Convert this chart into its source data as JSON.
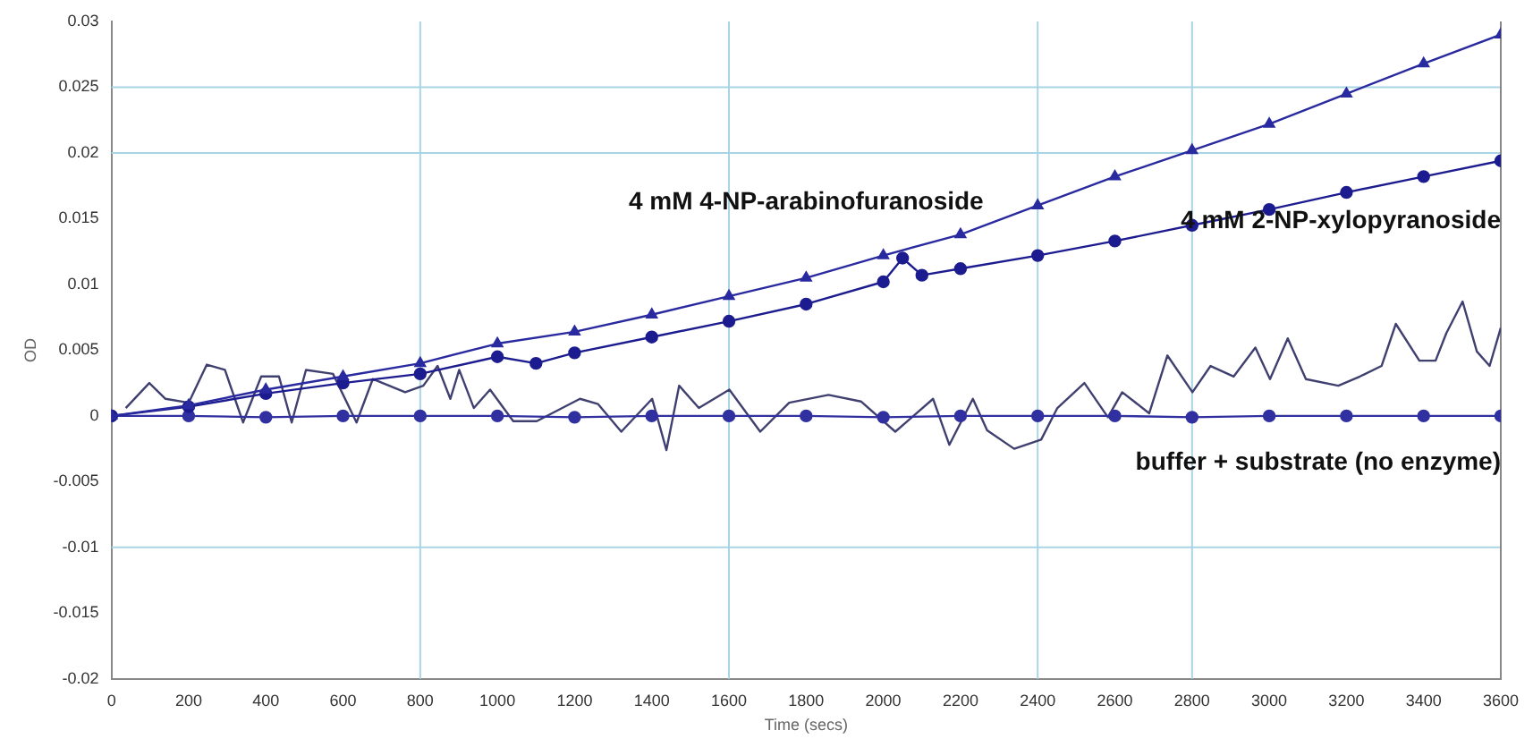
{
  "chart_data": {
    "type": "line",
    "xlabel": "Time (secs)",
    "ylabel": "OD",
    "xlim": [
      0,
      3600
    ],
    "xticks": [
      0,
      200,
      400,
      600,
      800,
      1000,
      1200,
      1400,
      1600,
      1800,
      2000,
      2200,
      2400,
      2600,
      2800,
      3000,
      3200,
      3400,
      3600
    ],
    "ylim": [
      -0.02,
      0.03
    ],
    "yticks": [
      -0.02,
      -0.015,
      -0.01,
      -0.005,
      0,
      0.005,
      0.01,
      0.015,
      0.02,
      0.025,
      0.03
    ],
    "grid": false,
    "legend": false,
    "line_style": "solid",
    "ref_lines": [
      {
        "axis": "x",
        "value": 800,
        "color": "#a8d4e4"
      },
      {
        "axis": "x",
        "value": 1600,
        "color": "#a8d4e4"
      },
      {
        "axis": "x",
        "value": 2400,
        "color": "#a8d4e4"
      },
      {
        "axis": "x",
        "value": 2800,
        "color": "#a8d4e4"
      },
      {
        "axis": "y",
        "value": 0.025,
        "color": "#a8d4e4"
      },
      {
        "axis": "y",
        "value": 0.02,
        "color": "#a8d4e4"
      },
      {
        "axis": "y",
        "value": -0.01,
        "color": "#a8d4e4"
      }
    ],
    "series": [
      {
        "name": "4 mM 4-NP-arabinofuranoside",
        "color": "#2a2aa0",
        "marker": "triangle",
        "x": [
          0,
          200,
          400,
          600,
          800,
          1000,
          1200,
          1400,
          1600,
          1800,
          2000,
          2200,
          2400,
          2600,
          2800,
          3000,
          3200,
          3400,
          3600
        ],
        "values": [
          0,
          0.0008,
          0.002,
          0.003,
          0.004,
          0.0055,
          0.0064,
          0.0077,
          0.0091,
          0.0105,
          0.0122,
          0.0138,
          0.016,
          0.0182,
          0.0202,
          0.0222,
          0.0245,
          0.0268,
          0.029
        ]
      },
      {
        "name": "4 mM 2-NP-xylopyranoside",
        "color": "#1c1c90",
        "marker": "circle",
        "x": [
          0,
          200,
          400,
          600,
          800,
          1000,
          1100,
          1200,
          1400,
          1600,
          1800,
          2000,
          2050,
          2100,
          2200,
          2400,
          2600,
          2800,
          3000,
          3200,
          3400,
          3600
        ],
        "values": [
          0,
          0.0007,
          0.0017,
          0.0025,
          0.0032,
          0.0045,
          0.004,
          0.0048,
          0.006,
          0.0072,
          0.0085,
          0.0102,
          0.012,
          0.0107,
          0.0112,
          0.0122,
          0.0133,
          0.0145,
          0.0157,
          0.017,
          0.0182,
          0.0194
        ]
      },
      {
        "name": "buffer + substrate (no enzyme)",
        "color": "#3030a0",
        "marker": "circle",
        "x": [
          0,
          200,
          400,
          600,
          800,
          1000,
          1200,
          1400,
          1600,
          1800,
          2000,
          2200,
          2400,
          2600,
          2800,
          3000,
          3200,
          3400,
          3600
        ],
        "values": [
          0,
          0,
          -0.0001,
          0,
          0,
          0,
          -0.0001,
          0,
          0,
          0,
          -0.0001,
          0,
          0,
          0,
          -0.0001,
          0,
          0,
          0,
          0
        ]
      },
      {
        "color": "#404070",
        "marker": "none",
        "x": [
          37,
          98,
          140,
          200,
          247,
          294,
          341,
          388,
          434,
          467,
          504,
          574,
          635,
          677,
          761,
          808,
          845,
          878,
          901,
          939,
          981,
          1041,
          1102,
          1214,
          1261,
          1321,
          1401,
          1438,
          1471,
          1522,
          1601,
          1681,
          1756,
          1858,
          1942,
          2031,
          2129,
          2171,
          2232,
          2269,
          2339,
          2409,
          2451,
          2521,
          2582,
          2619,
          2689,
          2736,
          2801,
          2848,
          2908,
          2964,
          3002,
          3048,
          3095,
          3179,
          3235,
          3291,
          3328,
          3389,
          3431,
          3459,
          3501,
          3538,
          3571,
          3600
        ],
        "values": [
          0.0006,
          0.0025,
          0.0013,
          0.001,
          0.0039,
          0.0035,
          -0.0005,
          0.003,
          0.003,
          -0.0005,
          0.0035,
          0.0032,
          -0.0005,
          0.0028,
          0.0018,
          0.0023,
          0.0038,
          0.0013,
          0.0035,
          0.0006,
          0.002,
          -0.0004,
          -0.0004,
          0.0013,
          0.0009,
          -0.0012,
          0.0013,
          -0.0026,
          0.0023,
          0.0006,
          0.002,
          -0.0012,
          0.001,
          0.0016,
          0.0011,
          -0.0012,
          0.0013,
          -0.0022,
          0.0013,
          -0.0011,
          -0.0025,
          -0.0018,
          0.0006,
          0.0025,
          -0.0001,
          0.0018,
          0.0002,
          0.0046,
          0.0018,
          0.0038,
          0.003,
          0.0052,
          0.0028,
          0.0059,
          0.0028,
          0.0023,
          0.003,
          0.0038,
          0.007,
          0.0042,
          0.0042,
          0.0063,
          0.0087,
          0.0049,
          0.0038,
          0.0067
        ]
      }
    ]
  }
}
